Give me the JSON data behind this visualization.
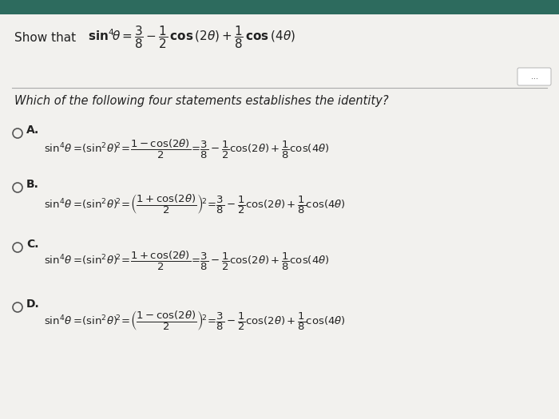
{
  "bg_top_color": "#2d6b5e",
  "paper_color": "#f2f1ee",
  "separator_color": "#aaaaaa",
  "title_normal": "Show that ",
  "title_bold_part": "sin",
  "question": "Which of the following four statements establishes the identity?",
  "dots_text": "...",
  "options": [
    "A.",
    "B.",
    "C.",
    "D."
  ],
  "radio_color": "#555555",
  "text_color": "#222222"
}
